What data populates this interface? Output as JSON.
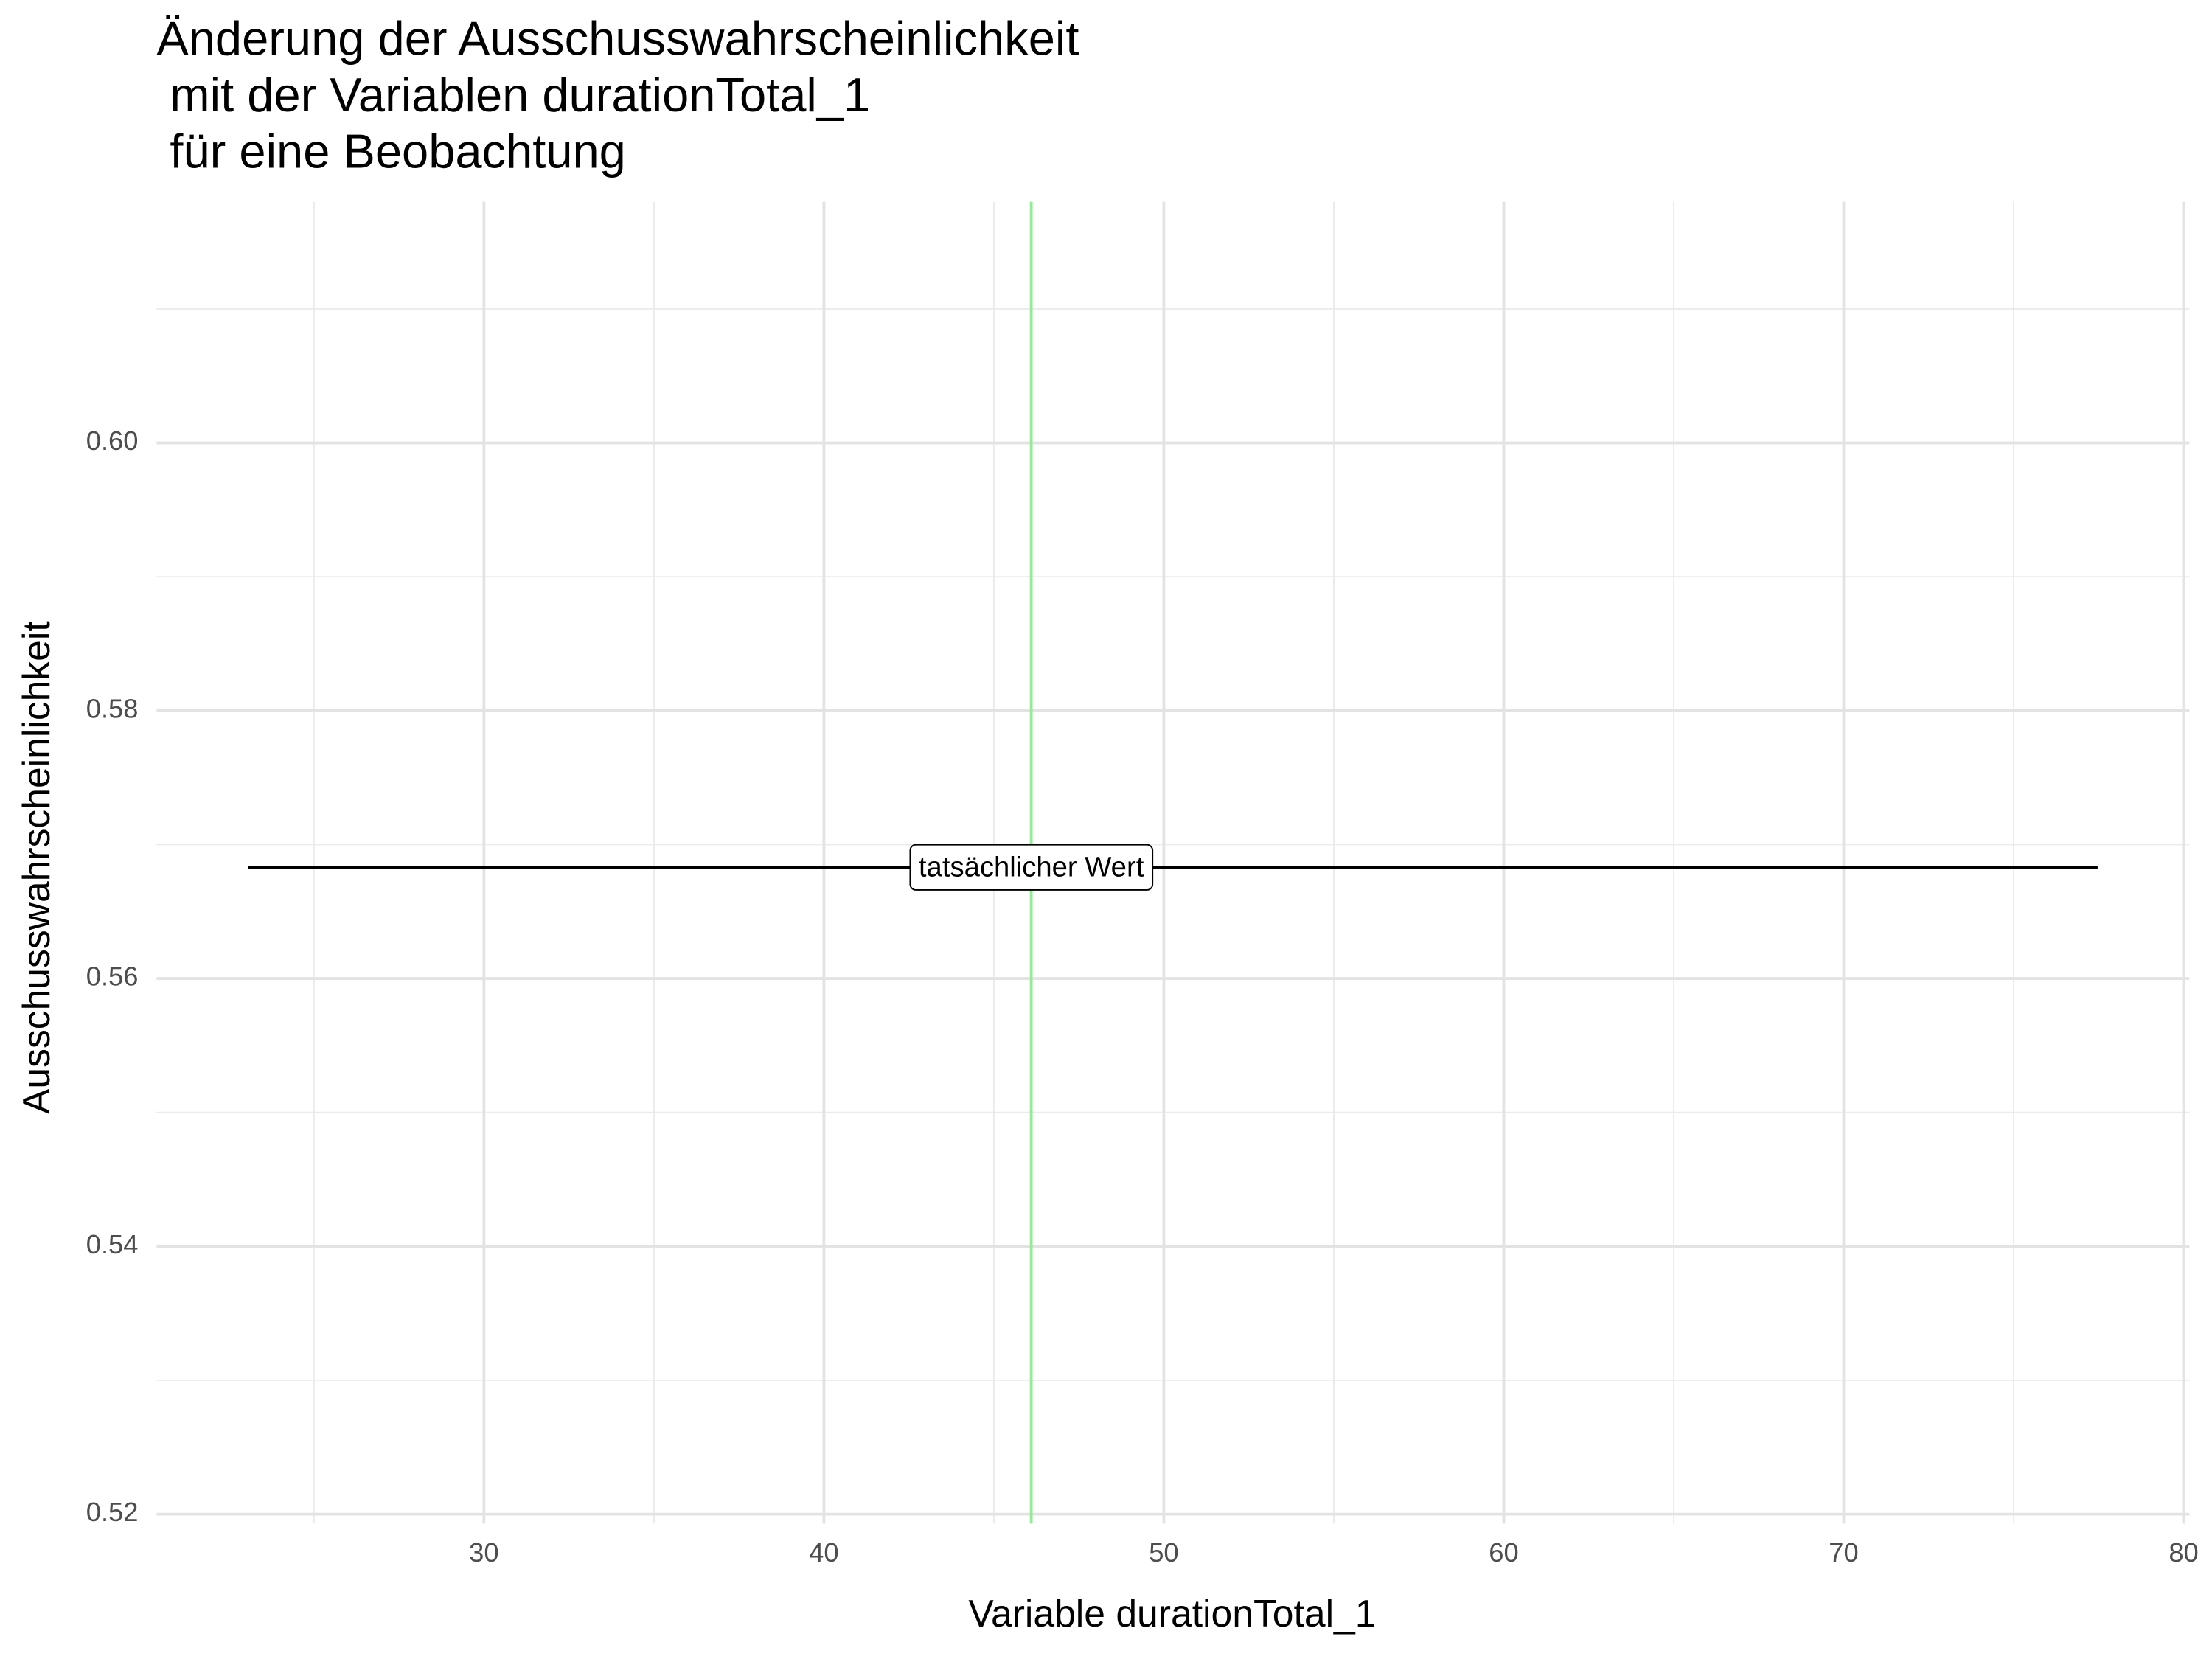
{
  "chart_data": {
    "type": "line",
    "title": [
      "Änderung der Ausschusswahrscheinlichkeit",
      " mit der Variablen durationTotal_1",
      " für eine Beobachtung"
    ],
    "x_label": "Variable durationTotal_1",
    "y_label": "Ausschusswahrscheinlichkeit",
    "x": [
      23.07,
      77.47
    ],
    "values": [
      0.5683,
      0.5683
    ],
    "color": "#000000",
    "xlim": [
      20.37,
      80.17
    ],
    "ylim": [
      0.5193,
      0.618
    ],
    "xticks": [
      30,
      40,
      50,
      60,
      70,
      80
    ],
    "yticks": [
      {
        "value": 0.52,
        "label": "0.52"
      },
      {
        "value": 0.54,
        "label": "0.54"
      },
      {
        "value": 0.56,
        "label": "0.56"
      },
      {
        "value": 0.58,
        "label": "0.58"
      },
      {
        "value": 0.6,
        "label": "0.60"
      }
    ],
    "x_minor_ticks": [
      25,
      35,
      45,
      55,
      65,
      75
    ],
    "y_minor_ticks": [
      0.53,
      0.55,
      0.57,
      0.59,
      0.61
    ],
    "grid": true,
    "vline": {
      "x": 46.1,
      "color": "#90ee90",
      "label": "tatsächlicher Wert"
    }
  }
}
